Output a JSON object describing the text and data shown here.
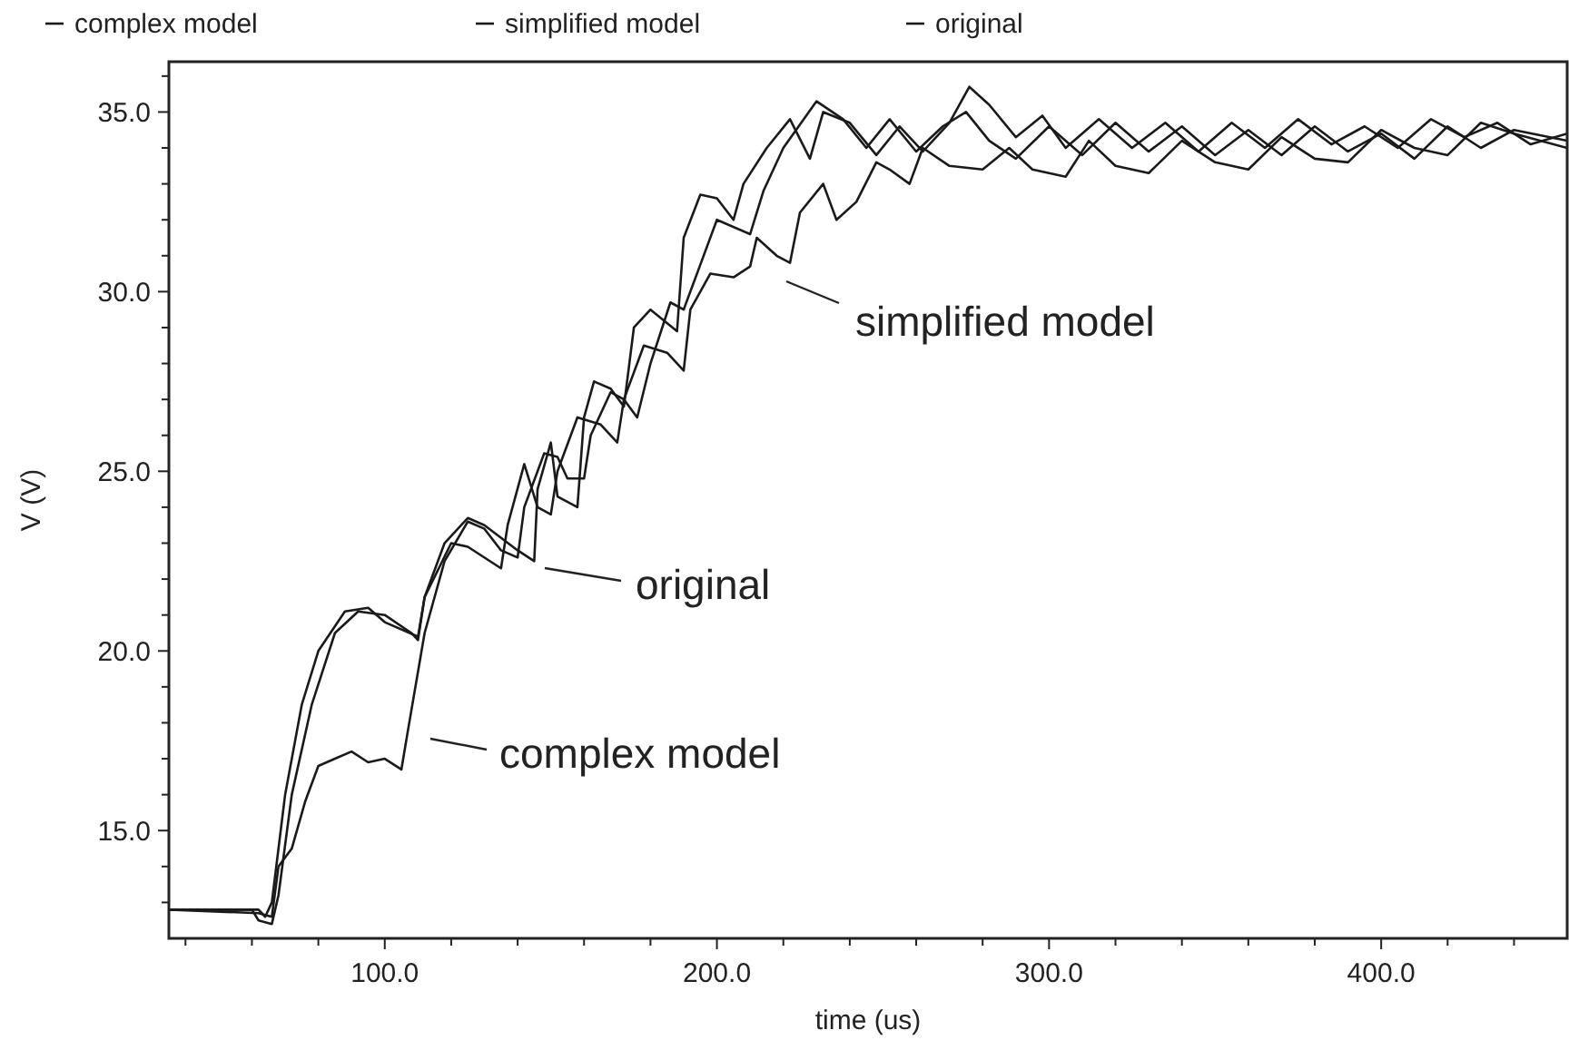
{
  "chart_data": {
    "type": "line",
    "xlabel": "time (us)",
    "ylabel": "V (V)",
    "xlim": [
      35,
      456
    ],
    "ylim": [
      12,
      36.4
    ],
    "xticks": [
      {
        "value": 40,
        "label": null
      },
      {
        "value": 60,
        "label": null
      },
      {
        "value": 80,
        "label": null
      },
      {
        "value": 100,
        "label": "100.0"
      },
      {
        "value": 120,
        "label": null
      },
      {
        "value": 140,
        "label": null
      },
      {
        "value": 160,
        "label": null
      },
      {
        "value": 180,
        "label": null
      },
      {
        "value": 200,
        "label": "200.0"
      },
      {
        "value": 220,
        "label": null
      },
      {
        "value": 240,
        "label": null
      },
      {
        "value": 260,
        "label": null
      },
      {
        "value": 280,
        "label": null
      },
      {
        "value": 300,
        "label": "300.0"
      },
      {
        "value": 320,
        "label": null
      },
      {
        "value": 340,
        "label": null
      },
      {
        "value": 360,
        "label": null
      },
      {
        "value": 380,
        "label": null
      },
      {
        "value": 400,
        "label": "400.0"
      },
      {
        "value": 420,
        "label": null
      },
      {
        "value": 440,
        "label": null
      }
    ],
    "yticks": [
      {
        "value": 13,
        "label": null
      },
      {
        "value": 14,
        "label": null
      },
      {
        "value": 15,
        "label": "15.0"
      },
      {
        "value": 16,
        "label": null
      },
      {
        "value": 17,
        "label": null
      },
      {
        "value": 18,
        "label": null
      },
      {
        "value": 19,
        "label": null
      },
      {
        "value": 20,
        "label": "20.0"
      },
      {
        "value": 21,
        "label": null
      },
      {
        "value": 22,
        "label": null
      },
      {
        "value": 23,
        "label": null
      },
      {
        "value": 24,
        "label": null
      },
      {
        "value": 25,
        "label": "25.0"
      },
      {
        "value": 26,
        "label": null
      },
      {
        "value": 27,
        "label": null
      },
      {
        "value": 28,
        "label": null
      },
      {
        "value": 29,
        "label": null
      },
      {
        "value": 30,
        "label": "30.0"
      },
      {
        "value": 31,
        "label": null
      },
      {
        "value": 32,
        "label": null
      },
      {
        "value": 33,
        "label": null
      },
      {
        "value": 34,
        "label": null
      },
      {
        "value": 35,
        "label": "35.0"
      },
      {
        "value": 36,
        "label": null
      }
    ],
    "grid": false,
    "legend": "top",
    "marker": "none",
    "line_style": "solid",
    "annotations": [
      "simplified model",
      "original",
      "complex model"
    ],
    "series": [
      {
        "name": "complex model",
        "color": "#1a1a1a",
        "x": [
          35,
          62,
          66,
          68,
          72,
          76,
          80,
          85,
          90,
          95,
          100,
          105,
          107,
          112,
          118,
          125,
          130,
          135,
          140,
          142,
          148,
          152,
          155,
          160,
          162,
          168,
          172,
          176,
          180,
          186,
          190,
          194,
          200,
          210,
          214,
          220,
          230,
          238,
          245,
          252,
          260,
          268,
          275,
          282,
          290,
          300,
          310,
          320,
          330,
          340,
          350,
          360,
          370,
          380,
          390,
          400,
          410,
          420,
          430,
          440,
          456
        ],
        "values": [
          12.8,
          12.7,
          12.6,
          14,
          14.5,
          15.8,
          16.8,
          17.0,
          17.2,
          16.9,
          17.0,
          16.7,
          17.8,
          20.5,
          22.5,
          23.6,
          23.4,
          22.8,
          22.6,
          24,
          25.5,
          25.4,
          24.8,
          24.8,
          26.0,
          27.2,
          27.0,
          26.5,
          28.0,
          29.7,
          29.5,
          30.5,
          32.0,
          31.6,
          32.8,
          34.0,
          35.3,
          34.8,
          34.0,
          34.8,
          33.9,
          34.6,
          35.0,
          34.2,
          33.7,
          34.6,
          33.8,
          34.7,
          33.9,
          34.6,
          33.8,
          34.5,
          33.8,
          34.6,
          33.9,
          34.4,
          33.7,
          34.6,
          34.0,
          34.5,
          34.2
        ]
      },
      {
        "name": "simplified model",
        "color": "#1a1a1a",
        "x": [
          35,
          60,
          62,
          66,
          68,
          72,
          78,
          85,
          92,
          100,
          108,
          110,
          112,
          120,
          125,
          135,
          137,
          142,
          146,
          150,
          152,
          158,
          165,
          170,
          172,
          178,
          185,
          190,
          192,
          198,
          205,
          210,
          212,
          218,
          222,
          225,
          232,
          236,
          242,
          248,
          252,
          258,
          262,
          270,
          280,
          288,
          295,
          305,
          312,
          320,
          330,
          340,
          350,
          360,
          370,
          380,
          390,
          400,
          410,
          420,
          430,
          440,
          456
        ],
        "values": [
          12.8,
          12.8,
          12.5,
          12.4,
          13.2,
          16,
          18.5,
          20.5,
          21.1,
          21.0,
          20.5,
          20.3,
          21.5,
          23.0,
          22.9,
          22.3,
          23.5,
          25.2,
          24.0,
          23.8,
          25,
          26.5,
          26.3,
          25.8,
          27,
          28.5,
          28.3,
          27.8,
          29.5,
          30.5,
          30.4,
          30.7,
          31.5,
          31.0,
          30.8,
          32.2,
          33.0,
          32.0,
          32.5,
          33.6,
          33.4,
          33.0,
          34.0,
          33.5,
          33.4,
          34.0,
          33.4,
          33.2,
          34.2,
          33.5,
          33.3,
          34.2,
          33.6,
          33.4,
          34.3,
          33.7,
          33.6,
          34.5,
          34.0,
          33.8,
          34.7,
          34.4,
          34.0
        ]
      },
      {
        "name": "original",
        "color": "#1a1a1a",
        "x": [
          35,
          62,
          64,
          66,
          70,
          75,
          80,
          88,
          95,
          100,
          110,
          112,
          118,
          125,
          130,
          140,
          145,
          146,
          150,
          152,
          158,
          160,
          163,
          168,
          172,
          175,
          180,
          188,
          190,
          195,
          200,
          205,
          208,
          215,
          222,
          228,
          232,
          240,
          248,
          255,
          262,
          270,
          276,
          282,
          290,
          298,
          305,
          315,
          325,
          335,
          345,
          355,
          365,
          375,
          385,
          395,
          405,
          415,
          425,
          435,
          445,
          456
        ],
        "values": [
          12.8,
          12.8,
          12.6,
          13.0,
          16,
          18.5,
          20,
          21.1,
          21.2,
          20.8,
          20.4,
          21.5,
          23.0,
          23.7,
          23.5,
          22.8,
          22.5,
          24.5,
          25.8,
          24.3,
          24.0,
          26.5,
          27.5,
          27.3,
          26.8,
          29.0,
          29.5,
          28.9,
          31.5,
          32.7,
          32.6,
          32.0,
          33.0,
          34.0,
          34.8,
          33.7,
          35.0,
          34.7,
          33.8,
          34.6,
          33.9,
          34.7,
          35.7,
          35.2,
          34.3,
          34.9,
          34.0,
          34.8,
          34.0,
          34.7,
          33.9,
          34.7,
          34.0,
          34.8,
          34.1,
          34.6,
          34.0,
          34.8,
          34.3,
          34.7,
          34.1,
          34.4
        ]
      }
    ]
  }
}
